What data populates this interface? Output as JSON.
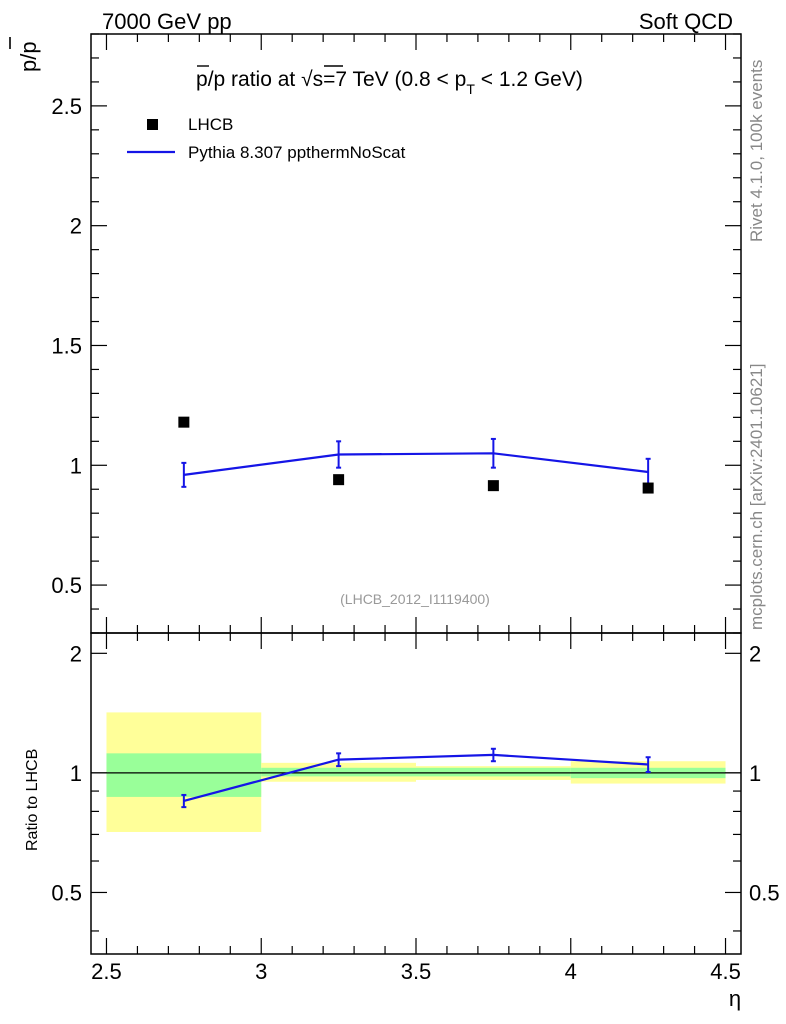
{
  "header": {
    "left": "7000 GeV pp",
    "right": "Soft QCD"
  },
  "side_labels": {
    "rivet": "Rivet 4.1.0,  100k events",
    "mcplots": "mcplots.cern.ch [arXiv:2401.10621]"
  },
  "chart_data": [
    {
      "type": "scatter",
      "title": "p̄/p ratio at √s=7 TeV (0.8 < pT < 1.2 GeV)",
      "title_parts": {
        "pbar": "p",
        "a": "/p ratio at ",
        "sqrt": "√",
        "s": "s",
        "b": "=7 TeV (0.8 < p",
        "sub": "T",
        "c": " < 1.2 GeV)"
      },
      "ylabel": "p̄/p",
      "ylabel_parts": {
        "pbar": "p",
        "rest": "/p"
      },
      "watermark": "(LHCB_2012_I1119400)",
      "ylim": [
        0.3,
        2.8
      ],
      "xlim": [
        2.45,
        4.55
      ],
      "yticks": [
        0.5,
        1,
        1.5,
        2,
        2.5
      ],
      "ytick_labels": [
        "0.5",
        "1",
        "1.5",
        "2",
        "2.5"
      ],
      "legend": [
        {
          "label": "LHCB",
          "marker": "square"
        },
        {
          "label": "Pythia 8.307 ppthermNoScat",
          "marker": "line"
        }
      ],
      "series": [
        {
          "name": "LHCB",
          "x": [
            2.75,
            3.25,
            3.75,
            4.25
          ],
          "y": [
            1.18,
            0.94,
            0.915,
            0.905
          ]
        },
        {
          "name": "Pythia 8.307 ppthermNoScat",
          "x": [
            2.75,
            3.25,
            3.75,
            4.25
          ],
          "y": [
            0.96,
            1.045,
            1.05,
            0.972
          ],
          "yerr": [
            0.05,
            0.055,
            0.06,
            0.055
          ]
        }
      ]
    },
    {
      "type": "ratio",
      "ylabel": "Ratio to LHCB",
      "xlabel": "η",
      "ylim": [
        0.35,
        2.25
      ],
      "xlim": [
        2.45,
        4.55
      ],
      "yticks": [
        0.5,
        1,
        2
      ],
      "ytick_labels": [
        "0.5",
        "1",
        "2"
      ],
      "xticks": [
        2.5,
        3,
        3.5,
        4,
        4.5
      ],
      "xtick_labels": [
        "2.5",
        "3",
        "3.5",
        "4",
        "4.5"
      ],
      "bands": [
        {
          "x0": 2.5,
          "x1": 3.0,
          "inner": [
            0.87,
            1.12
          ],
          "outer": [
            0.71,
            1.42
          ]
        },
        {
          "x0": 3.0,
          "x1": 3.5,
          "inner": [
            0.98,
            1.03
          ],
          "outer": [
            0.95,
            1.06
          ]
        },
        {
          "x0": 3.5,
          "x1": 4.0,
          "inner": [
            0.98,
            1.03
          ],
          "outer": [
            0.96,
            1.04
          ]
        },
        {
          "x0": 4.0,
          "x1": 4.5,
          "inner": [
            0.97,
            1.03
          ],
          "outer": [
            0.94,
            1.07
          ]
        }
      ],
      "series": [
        {
          "name": "Pythia 8.307 ppthermNoScat / LHCB",
          "x": [
            2.75,
            3.25,
            3.75,
            4.25
          ],
          "y": [
            0.85,
            1.08,
            1.11,
            1.05
          ],
          "yerr": [
            0.03,
            0.04,
            0.04,
            0.045
          ]
        }
      ]
    }
  ],
  "colors": {
    "mc": "#1515e6",
    "data": "#000000",
    "band_inner": "#99ff99",
    "band_outer": "#ffff99"
  }
}
